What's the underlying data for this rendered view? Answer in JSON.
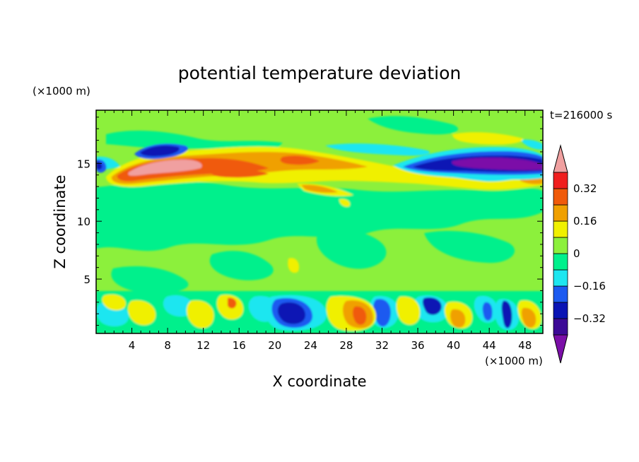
{
  "chart_data": {
    "type": "heatmap",
    "title": "potential temperature deviation",
    "xlabel": "X coordinate",
    "ylabel": "Z coordinate",
    "x_unit": "(×1000 m)",
    "y_unit": "(×1000 m)",
    "time_label": "t=216000 s",
    "xlim": [
      0,
      50
    ],
    "ylim": [
      0.3,
      19.6
    ],
    "x_ticks": [
      4,
      8,
      12,
      16,
      20,
      24,
      28,
      32,
      36,
      40,
      44,
      48
    ],
    "y_ticks": [
      5,
      10,
      15
    ],
    "colorbar": {
      "levels": [
        -0.4,
        -0.32,
        -0.24,
        -0.16,
        -0.08,
        0,
        0.08,
        0.16,
        0.24,
        0.32,
        0.4
      ],
      "labeled_levels": [
        0.32,
        0.16,
        0,
        -0.16,
        -0.32
      ],
      "colors": [
        "#7B0FA8",
        "#3C0A96",
        "#0A14B4",
        "#1C5AF0",
        "#1EE6F0",
        "#00F08C",
        "#8CF03C",
        "#F0F000",
        "#F0A000",
        "#F05A0A",
        "#F01E1E",
        "#F0A0A0"
      ]
    },
    "features": [
      {
        "x": 8,
        "z": 14.9,
        "value": 0.42
      },
      {
        "x": 12,
        "z": 15.3,
        "value": 0.3
      },
      {
        "x": 15,
        "z": 14.1,
        "value": 0.3
      },
      {
        "x": 7,
        "z": 16.4,
        "value": -0.36
      },
      {
        "x": 47,
        "z": 15.2,
        "value": -0.42
      },
      {
        "x": 39,
        "z": 14.8,
        "value": -0.34
      },
      {
        "x": 22,
        "z": 2.0,
        "value": -0.36
      },
      {
        "x": 29,
        "z": 2.0,
        "value": 0.32
      },
      {
        "x": 38,
        "z": 2.6,
        "value": -0.32
      },
      {
        "x": 23,
        "z": 15.2,
        "value": 0.3
      }
    ]
  }
}
